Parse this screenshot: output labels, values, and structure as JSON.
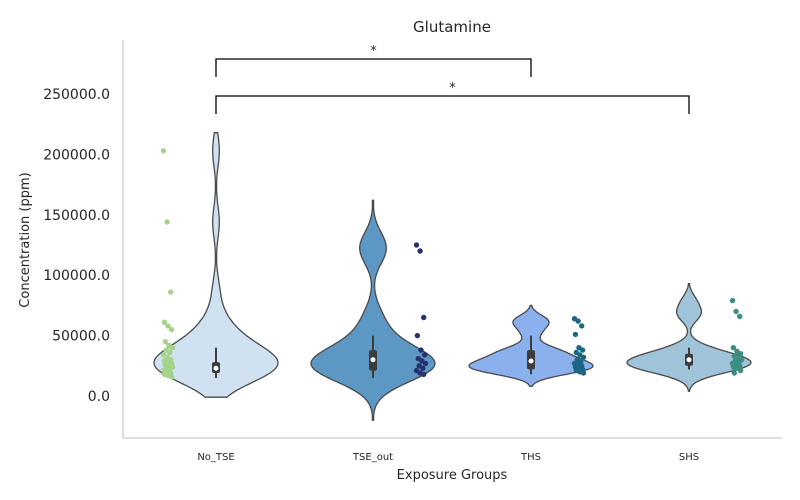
{
  "chart_data": {
    "type": "violin",
    "title": "Glutamine",
    "xlabel": "Exposure Groups",
    "ylabel": "Concentration (ppm)",
    "ylim": [
      -35000,
      295000
    ],
    "yticks": [
      0,
      50000,
      100000,
      150000,
      200000,
      250000
    ],
    "ytick_labels": [
      "0.0",
      "50000.0",
      "100000.0",
      "150000.0",
      "200000.0",
      "250000.0"
    ],
    "grid": false,
    "categories": [
      "No_TSE",
      "TSE_out",
      "THS",
      "SHS"
    ],
    "groups": [
      {
        "name": "No_TSE",
        "violin_color": "#d0e1f2",
        "point_color": "#a5d38a",
        "box": {
          "q1": 19000,
          "median": 23000,
          "q3": 28000,
          "whisker_low": 15000,
          "whisker_high": 40000
        },
        "violin_range": [
          -1000,
          218000
        ],
        "points": [
          203000,
          144000,
          86000,
          61000,
          58000,
          55000,
          45000,
          42000,
          40000,
          38000,
          36000,
          34000,
          32000,
          30000,
          29000,
          28000,
          27000,
          26000,
          25000,
          24000,
          23000,
          22000,
          21000,
          20000,
          19000,
          18000,
          17000,
          16000
        ]
      },
      {
        "name": "TSE_out",
        "violin_color": "#5d98c4",
        "point_color": "#263170",
        "box": {
          "q1": 21000,
          "median": 30000,
          "q3": 38000,
          "whisker_low": 15000,
          "whisker_high": 50000
        },
        "violin_range": [
          -20000,
          162000
        ],
        "points": [
          125000,
          120000,
          65000,
          50000,
          38000,
          34000,
          31000,
          29000,
          27000,
          25000,
          23000,
          21000,
          19000,
          18000
        ]
      },
      {
        "name": "THS",
        "violin_color": "#8ab0ee",
        "point_color": "#1a6684",
        "box": {
          "q1": 22000,
          "median": 29000,
          "q3": 38000,
          "whisker_low": 18000,
          "whisker_high": 50000
        },
        "violin_range": [
          8000,
          75000
        ],
        "points": [
          64000,
          62000,
          58000,
          51000,
          40000,
          38000,
          36000,
          34000,
          32000,
          30000,
          28000,
          27000,
          26000,
          25000,
          24000,
          23000,
          22000,
          21000,
          20000,
          19000
        ]
      },
      {
        "name": "SHS",
        "violin_color": "#9fc3d8",
        "point_color": "#3a8f82",
        "box": {
          "q1": 25000,
          "median": 30000,
          "q3": 35000,
          "whisker_low": 22000,
          "whisker_high": 40000
        },
        "violin_range": [
          4000,
          93000
        ],
        "points": [
          79000,
          70000,
          66000,
          40000,
          37000,
          35000,
          33000,
          31000,
          30000,
          29000,
          28000,
          27000,
          26000,
          25000,
          24000,
          23000,
          21000,
          19000
        ]
      }
    ],
    "annotations": [
      {
        "from": "No_TSE",
        "to": "THS",
        "label": "*"
      },
      {
        "from": "No_TSE",
        "to": "SHS",
        "label": "*"
      }
    ]
  }
}
